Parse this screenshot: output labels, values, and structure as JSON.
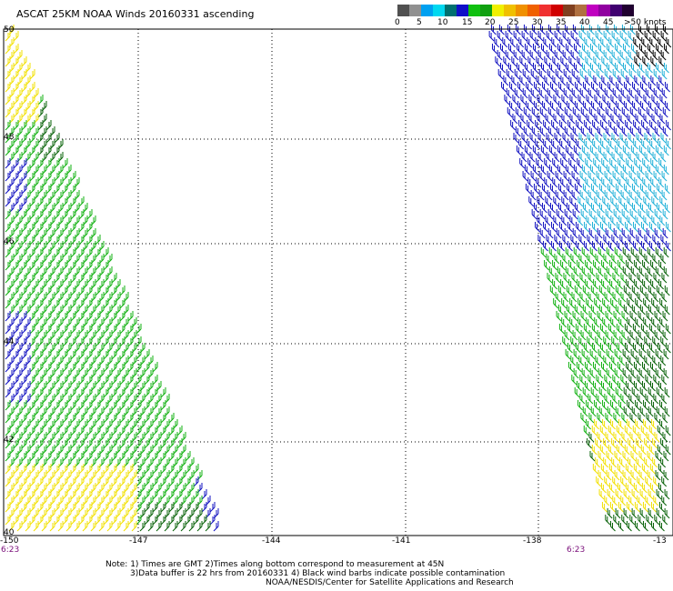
{
  "title": "ASCAT 25KM NOAA Winds 20160331 ascending",
  "legend": {
    "colors": [
      "#505050",
      "#909090",
      "#00a0f0",
      "#00d8f0",
      "#007070",
      "#1010c8",
      "#10c010",
      "#10a010",
      "#f0f000",
      "#f0c000",
      "#f09000",
      "#f06000",
      "#f03030",
      "#d00000",
      "#804020",
      "#b07040",
      "#c000c0",
      "#9000a0",
      "#400070",
      "#200030"
    ],
    "labels": [
      "0",
      "5",
      "10",
      "15",
      "20",
      "25",
      "30",
      "35",
      "40",
      "45",
      ">50 knots"
    ]
  },
  "lat_labels": [
    "50",
    "48",
    "46",
    "44",
    "42",
    "40"
  ],
  "lon_labels": [
    "-150",
    "-147",
    "-144",
    "-141",
    "-138",
    "-13"
  ],
  "times": [
    "6:23",
    "6:23"
  ],
  "wind_colors": {
    "yellow": "#f2e000",
    "green": "#10b010",
    "dark_green": "#066006",
    "blue": "#1010c0",
    "cyan": "#20b0d8",
    "black": "#000000"
  },
  "notes": {
    "line1": "Note: 1) Times are GMT 2)Times along bottom correspond to measurement at 45N",
    "line2": "3)Data buffer is 22 hrs from 20160331 4) Black wind barbs indicate possible contamination",
    "line3": "NOAA/NESDIS/Center for Satellite Applications and Research"
  }
}
